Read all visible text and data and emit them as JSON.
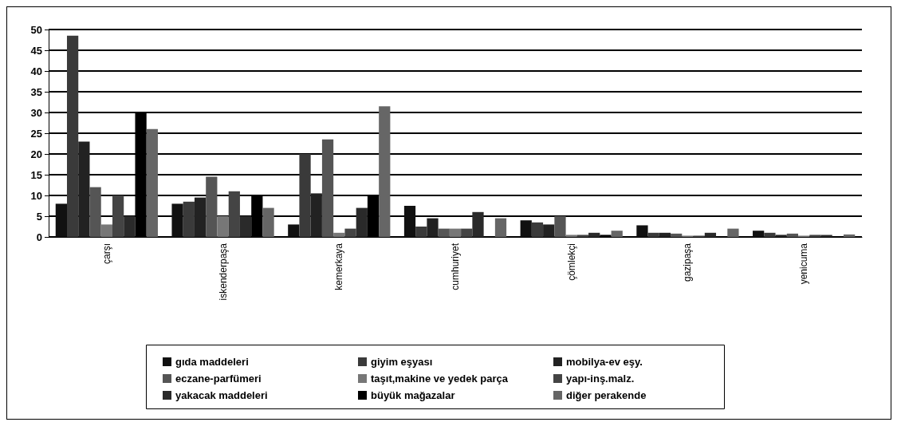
{
  "chart_data": {
    "type": "bar",
    "categories": [
      "çarşı",
      "iskenderpaşa",
      "kemerkaya",
      "cumhuriyet",
      "çömlekçi",
      "gazipaşa",
      "yenicuma"
    ],
    "series": [
      {
        "name": "gıda maddeleri",
        "color": "#111111",
        "values": [
          8,
          8,
          3,
          7.5,
          4,
          2.8,
          1.5
        ]
      },
      {
        "name": "giyim eşyası",
        "color": "#3a3a3a",
        "values": [
          48.5,
          8.5,
          20,
          2.5,
          3.5,
          1,
          1
        ]
      },
      {
        "name": "mobilya-ev eşy.",
        "color": "#222222",
        "values": [
          23,
          9.5,
          10.5,
          4.5,
          3,
          1,
          0.5
        ]
      },
      {
        "name": "eczane-parfümeri",
        "color": "#555555",
        "values": [
          12,
          14.5,
          23.5,
          2,
          5,
          0.8,
          0.8
        ]
      },
      {
        "name": "taşıt,makine ve yedek parça",
        "color": "#777777",
        "values": [
          3,
          5,
          1,
          2,
          0.5,
          0.3,
          0.3
        ]
      },
      {
        "name": "yapı-inş.malz.",
        "color": "#444444",
        "values": [
          10,
          11,
          2,
          2,
          0.5,
          0.3,
          0.5
        ]
      },
      {
        "name": "yakacak maddeleri",
        "color": "#2a2a2a",
        "values": [
          5,
          5,
          7,
          6,
          1,
          1,
          0.5
        ]
      },
      {
        "name": "büyük mağazalar",
        "color": "#000000",
        "values": [
          30,
          10,
          10,
          0,
          0.5,
          null,
          null
        ]
      },
      {
        "name": "diğer perakende",
        "color": "#666666",
        "values": [
          26,
          7,
          31.5,
          4.5,
          1.5,
          2,
          0.6
        ]
      }
    ],
    "ylim": [
      0,
      50
    ],
    "yticks": [
      0,
      5,
      10,
      15,
      20,
      25,
      30,
      35,
      40,
      45,
      50
    ],
    "grid": "y",
    "legend": "bottom"
  }
}
